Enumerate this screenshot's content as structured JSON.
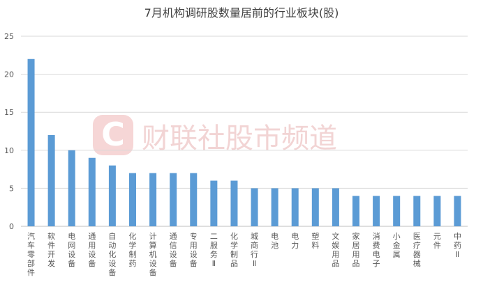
{
  "chart_data": {
    "type": "bar",
    "title": "7月机构调研股数量居前的行业板块(股)",
    "categories": [
      "汽车零部件",
      "软件开发",
      "电网设备",
      "通用设备",
      "自动化设备",
      "化学制药",
      "计算机设备",
      "通信设备",
      "专用设备",
      "二服务Ⅱ",
      "化学制品",
      "城商行Ⅱ",
      "电池",
      "电力",
      "塑料",
      "文娱用品",
      "家居用品",
      "消费电子",
      "小金属",
      "医疗器械",
      "元件",
      "中药Ⅱ"
    ],
    "values": [
      22,
      12,
      10,
      9,
      8,
      7,
      7,
      7,
      7,
      6,
      6,
      5,
      5,
      5,
      5,
      5,
      4,
      4,
      4,
      4,
      4,
      4
    ],
    "ylim": [
      0,
      25
    ],
    "yticks": [
      0,
      5,
      10,
      15,
      20,
      25
    ],
    "xlabel": "",
    "ylabel": "",
    "grid": true,
    "bar_color": "#5b9bd5"
  },
  "watermark": {
    "text": "财联社股市频道",
    "logo_letter": "C",
    "color": "#f2c5c5"
  }
}
